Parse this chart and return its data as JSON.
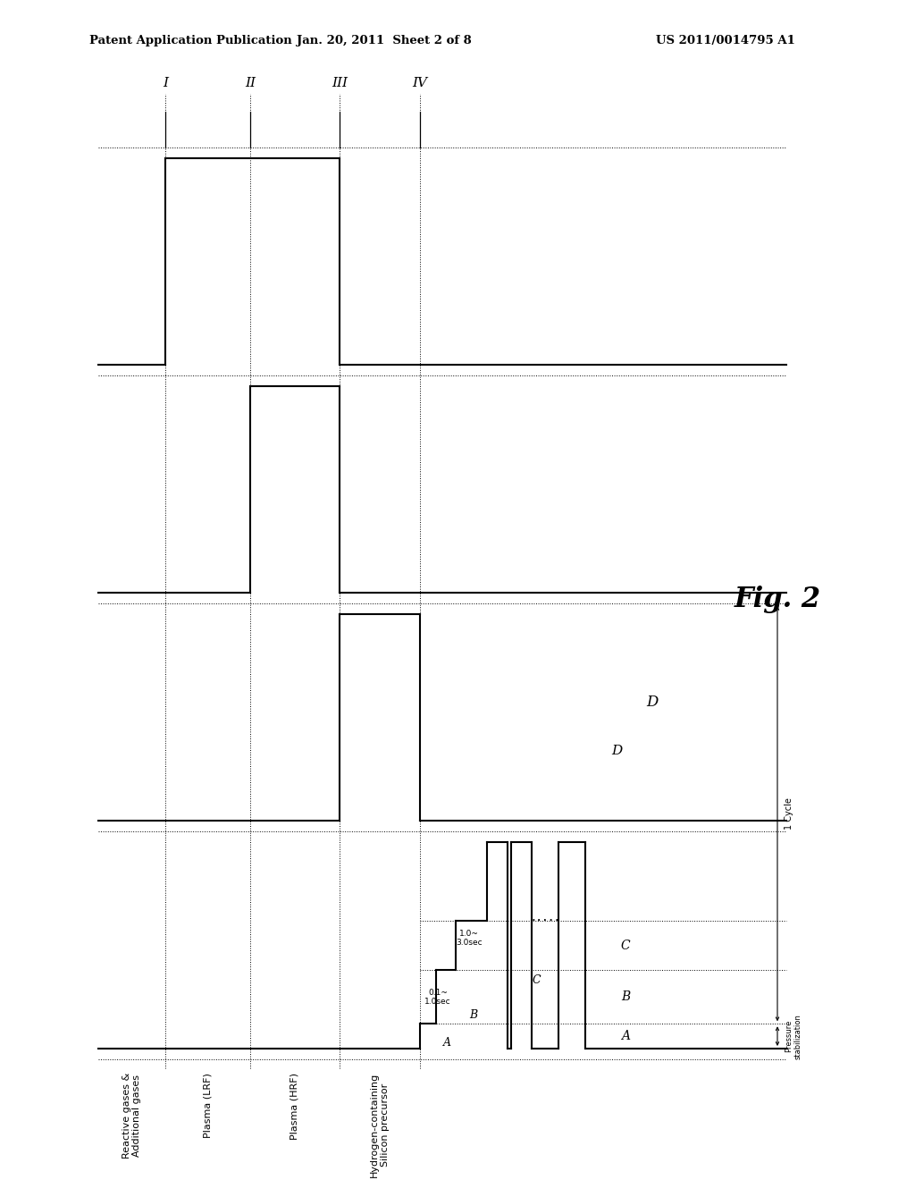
{
  "header_left": "Patent Application Publication",
  "header_center": "Jan. 20, 2011  Sheet 2 of 8",
  "header_right": "US 2011/0014795 A1",
  "fig_label": "Fig. 2",
  "background_color": "#ffffff",
  "phase_labels": [
    "I",
    "II",
    "III",
    "IV"
  ],
  "row_labels": [
    "Reactive gases &\nAdditional gases",
    "Plasma (LRF)",
    "Plasma (HRF)",
    "Hydrogen-containing\nSilicon precursor"
  ],
  "segment_labels": [
    "A",
    "B",
    "C",
    "D"
  ],
  "timing_label_B": "0.1~\n1.0sec",
  "timing_label_C": "1.0~\n3.0sec",
  "pressure_label": "Pressure\nstabilization",
  "cycle_label": "1 Cycle",
  "dots": "....."
}
